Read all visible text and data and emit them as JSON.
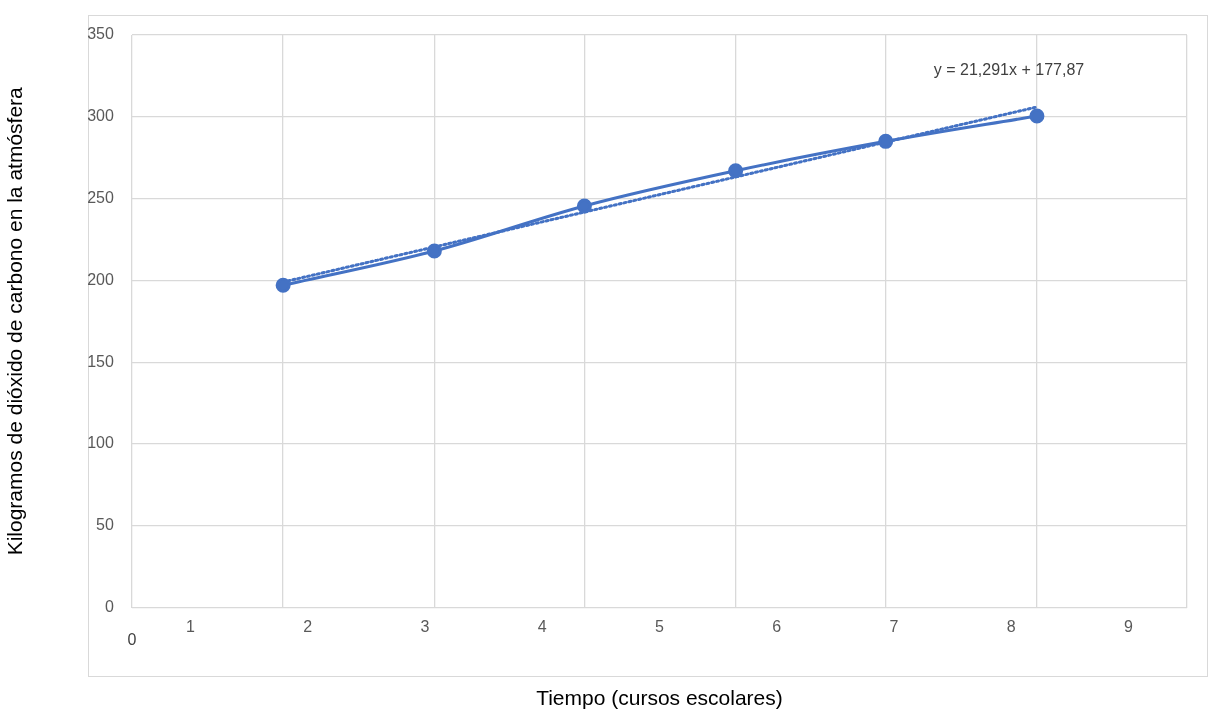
{
  "chart_data": {
    "type": "line",
    "xlabel": "Tiempo (cursos escolares)",
    "ylabel": "Kilogramos de dióxido de carbono en la atmósfera",
    "x": [
      1.79,
      3.08,
      4.36,
      5.65,
      6.93,
      8.22
    ],
    "series": [
      {
        "color": "#4472c4",
        "values": [
          197,
          218,
          245.5,
          267,
          285,
          300.5
        ],
        "marker": "circle",
        "line_style": "solid"
      },
      {
        "type": "line",
        "x": [
          1.79,
          8.22
        ],
        "color": "#4472c4",
        "values": [
          199,
          306
        ],
        "marker": "none",
        "line_style": "dotted"
      }
    ],
    "xlim": [
      0.5,
      9.5
    ],
    "xticks": [
      {
        "value": 0.5,
        "label": null
      },
      {
        "value": 1.79,
        "label": null
      },
      {
        "value": 3.08,
        "label": null
      },
      {
        "value": 4.36,
        "label": null
      },
      {
        "value": 5.65,
        "label": null
      },
      {
        "value": 6.93,
        "label": null
      },
      {
        "value": 8.22,
        "label": null
      },
      {
        "value": 9.5,
        "label": null
      },
      1,
      2,
      3,
      4,
      5,
      6,
      7,
      8,
      9
    ],
    "ylim": [
      0,
      350
    ],
    "yticks": [
      0,
      50,
      100,
      150,
      200,
      250,
      300,
      350
    ],
    "grid": true,
    "legend": false,
    "annotations": [
      "0",
      "y = 21,291x + 177,87"
    ]
  }
}
